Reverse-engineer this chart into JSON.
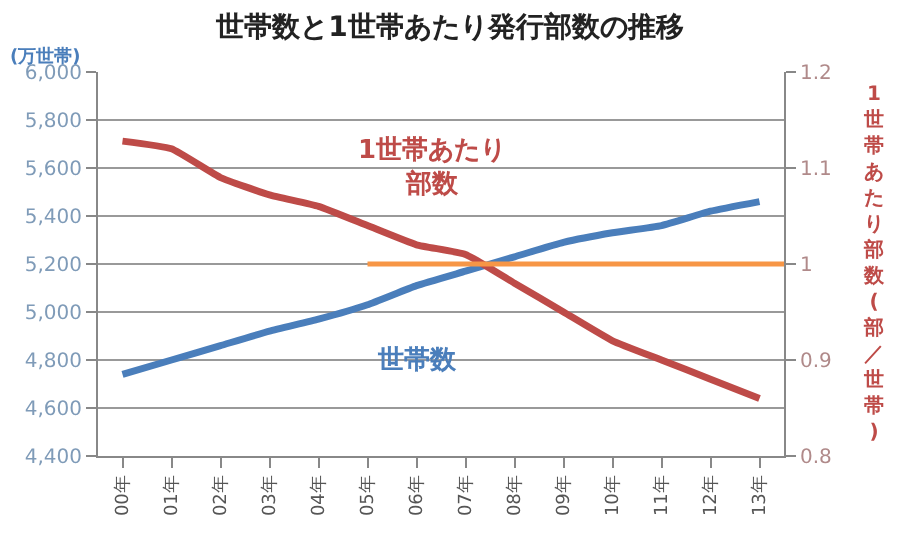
{
  "chart_data": {
    "type": "line",
    "title": "世帯数と1世帯あたり発行部数の推移",
    "ylabel": "(万世帯)",
    "y2label": "1世帯あたり部数(部／世帯)",
    "categories": [
      "00年",
      "01年",
      "02年",
      "03年",
      "04年",
      "05年",
      "06年",
      "07年",
      "08年",
      "09年",
      "10年",
      "11年",
      "12年",
      "13年"
    ],
    "series": [
      {
        "name": "世帯数",
        "color": "#4a7ebb",
        "values": [
          4740,
          4800,
          4860,
          4920,
          4970,
          5030,
          5110,
          5170,
          5230,
          5290,
          5330,
          5360,
          5420,
          5460
        ]
      },
      {
        "name": "1世帯あたり部数",
        "color": "#be4b48",
        "axis": "y2",
        "values": [
          1.128,
          1.12,
          1.09,
          1.072,
          1.06,
          1.04,
          1.02,
          1.01,
          0.98,
          0.95,
          0.92,
          0.9,
          0.88,
          0.86
        ]
      }
    ],
    "ylim": [
      4400,
      6000
    ],
    "yticks": [
      {
        "value": 4400,
        "label": "4,400"
      },
      {
        "value": 4600,
        "label": "4,600"
      },
      {
        "value": 4800,
        "label": "4,800"
      },
      {
        "value": 5000,
        "label": "5,000"
      },
      {
        "value": 5200,
        "label": "5,200"
      },
      {
        "value": 5400,
        "label": "5,400"
      },
      {
        "value": 5600,
        "label": "5,600"
      },
      {
        "value": 5800,
        "label": "5,800"
      },
      {
        "value": 6000,
        "label": "6,000"
      }
    ],
    "y2lim": [
      0.8,
      1.2
    ],
    "y2ticks": [
      0.8,
      0.9,
      1,
      1.1,
      1.2
    ],
    "ref_lines": [
      {
        "axis": "y2",
        "value": 1,
        "color": "#f79646"
      }
    ],
    "grid": "y",
    "legend": false,
    "marker": "none",
    "line_style": "solid"
  }
}
